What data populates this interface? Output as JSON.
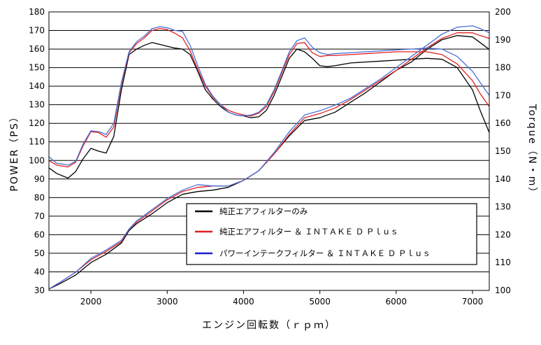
{
  "chart_data": {
    "type": "line",
    "xlabel": "エンジン回転数（ｒｐｍ）",
    "ylabel_left": "POWER（PS）",
    "ylabel_right": "Torque（N・m）",
    "xlim": [
      1450,
      7220
    ],
    "ylim_left": [
      30,
      180
    ],
    "ylim_right": [
      100,
      200
    ],
    "x_ticks": [
      "2000",
      "3000",
      "4000",
      "5000",
      "6000",
      "7000"
    ],
    "y_left_ticks": [
      "30",
      "40",
      "50",
      "60",
      "70",
      "80",
      "90",
      "100",
      "110",
      "120",
      "130",
      "140",
      "150",
      "160",
      "170",
      "180"
    ],
    "y_right_ticks": [
      "100",
      "110",
      "120",
      "130",
      "140",
      "150",
      "160",
      "170",
      "180",
      "190",
      "200"
    ],
    "grid": "horizontal",
    "legend_position": "lower-middle",
    "series": [
      {
        "name": "純正エアフィルターのみ",
        "color": "#000000",
        "power_x": [
          1450,
          1550,
          1700,
          1800,
          1900,
          2000,
          2100,
          2200,
          2300,
          2400,
          2500,
          2600,
          2700,
          2800,
          2900,
          3000,
          3100,
          3200,
          3300,
          3400,
          3500,
          3600,
          3700,
          3800,
          3900,
          4000,
          4100,
          4200,
          4300,
          4400,
          4500,
          4600,
          4700,
          4800,
          4900,
          5000,
          5100,
          5200,
          5400,
          5600,
          5800,
          6000,
          6200,
          6400,
          6600,
          6800,
          7000,
          7100,
          7220
        ],
        "power_y": [
          96,
          93,
          90.5,
          94,
          101,
          106.5,
          105,
          104,
          113,
          138,
          157,
          160,
          162,
          163.5,
          162.5,
          161.5,
          160.5,
          160,
          157,
          148,
          138,
          133,
          129,
          126,
          124.5,
          124,
          123,
          123.5,
          127,
          135,
          145,
          155,
          160,
          158.5,
          155,
          151,
          150.5,
          151,
          152.5,
          153,
          153.5,
          154,
          154.5,
          155,
          154.5,
          150,
          138,
          127,
          115
        ],
        "torque_x": [
          1450,
          1600,
          1800,
          2000,
          2200,
          2400,
          2500,
          2600,
          2800,
          3000,
          3200,
          3400,
          3600,
          3800,
          4000,
          4200,
          4400,
          4600,
          4800,
          5000,
          5200,
          5400,
          5600,
          5800,
          6000,
          6200,
          6400,
          6600,
          6800,
          7000,
          7100,
          7220
        ],
        "torque_y": [
          100.5,
          102.5,
          105.5,
          110,
          113,
          117,
          121.5,
          124,
          127.5,
          131.5,
          134.5,
          135.5,
          136,
          137,
          139.5,
          143,
          149,
          155.5,
          161,
          162,
          164,
          167.5,
          171,
          175,
          179,
          182,
          186.5,
          190,
          191.5,
          191,
          189,
          186.5
        ]
      },
      {
        "name": "純正エアフィルター ＆ ＩＮＴＡＫＥ Ｄ Ｐｌｕｓ",
        "color": "#e02020",
        "power_x": [
          1450,
          1550,
          1700,
          1800,
          1900,
          2000,
          2100,
          2200,
          2300,
          2400,
          2500,
          2600,
          2700,
          2800,
          2900,
          3000,
          3100,
          3200,
          3300,
          3400,
          3500,
          3600,
          3700,
          3800,
          3900,
          4000,
          4100,
          4200,
          4300,
          4400,
          4500,
          4600,
          4700,
          4800,
          4900,
          5000,
          5100,
          5200,
          5400,
          5600,
          5800,
          6000,
          6200,
          6400,
          6600,
          6800,
          7000,
          7100,
          7220
        ],
        "power_y": [
          100,
          97.5,
          96.5,
          99,
          108,
          115.5,
          115,
          112.5,
          118,
          141,
          158,
          163,
          166,
          170,
          171,
          170.5,
          168.5,
          166,
          159,
          149,
          140,
          134,
          130,
          127,
          125.5,
          124.5,
          124,
          125.5,
          129,
          137,
          147,
          157,
          163,
          163.5,
          158,
          156,
          156.5,
          156.5,
          157,
          157.5,
          158,
          158.5,
          158.5,
          158.5,
          157,
          152,
          143,
          136,
          129
        ],
        "torque_x": [
          1450,
          1600,
          1800,
          2000,
          2200,
          2400,
          2500,
          2600,
          2800,
          3000,
          3200,
          3400,
          3600,
          3800,
          4000,
          4200,
          4400,
          4600,
          4800,
          5000,
          5200,
          5400,
          5600,
          5800,
          6000,
          6200,
          6400,
          6600,
          6800,
          7000,
          7100,
          7220
        ],
        "torque_y": [
          100.5,
          103,
          106.5,
          111,
          114,
          117.5,
          122,
          124.5,
          128.5,
          132.5,
          135.5,
          137,
          137.5,
          137.5,
          139.5,
          143,
          149,
          156,
          162,
          163.5,
          165.5,
          168.5,
          172,
          175.5,
          179,
          183,
          187,
          190.5,
          192.5,
          192.5,
          191.5,
          190.5
        ]
      },
      {
        "name": "パワーインテークフィルター ＆ ＩＮＴＡＫＥ Ｄ Ｐｌｕｓ",
        "color": "#4a6fd8",
        "power_x": [
          1450,
          1550,
          1700,
          1800,
          1900,
          2000,
          2100,
          2200,
          2300,
          2400,
          2500,
          2600,
          2700,
          2800,
          2900,
          3000,
          3100,
          3200,
          3300,
          3400,
          3500,
          3600,
          3700,
          3800,
          3900,
          4000,
          4100,
          4200,
          4300,
          4400,
          4500,
          4600,
          4700,
          4800,
          4900,
          5000,
          5100,
          5200,
          5400,
          5600,
          5800,
          6000,
          6200,
          6400,
          6600,
          6800,
          7000,
          7100,
          7220
        ],
        "power_y": [
          102,
          98.5,
          97.5,
          99.5,
          109,
          116,
          115.5,
          114,
          120,
          142,
          158.5,
          164,
          167,
          171,
          172,
          171.5,
          170,
          169.5,
          162,
          151,
          141,
          134.5,
          130,
          126,
          124.5,
          124,
          124.5,
          126,
          130,
          138,
          148,
          158.5,
          164.5,
          166,
          161,
          158,
          157,
          157.5,
          158,
          158.5,
          159,
          159.5,
          160,
          160.5,
          160,
          156,
          148,
          142,
          135
        ],
        "torque_x": [
          1450,
          1600,
          1800,
          2000,
          2200,
          2400,
          2500,
          2600,
          2800,
          3000,
          3200,
          3400,
          3600,
          3800,
          4000,
          4200,
          4400,
          4600,
          4800,
          5000,
          5200,
          5400,
          5600,
          5800,
          6000,
          6200,
          6400,
          6600,
          6800,
          7000,
          7100,
          7220
        ],
        "torque_y": [
          100.5,
          103,
          106.5,
          111.5,
          114.5,
          118,
          122,
          125,
          129,
          133,
          136,
          138,
          137.5,
          137.5,
          139.5,
          143,
          149.5,
          157,
          163,
          164.5,
          166.5,
          169,
          172.5,
          176,
          180,
          184,
          188,
          192,
          194.5,
          195,
          194,
          192.5
        ]
      }
    ]
  }
}
